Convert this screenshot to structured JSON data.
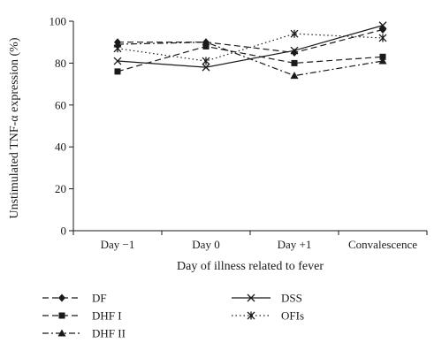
{
  "chart_data": {
    "type": "line",
    "title": "",
    "xlabel": "Day of illness related to fever",
    "ylabel": "Unstimulated TNF-α expression (%)",
    "categories": [
      "Day −1",
      "Day 0",
      "Day +1",
      "Convalescence"
    ],
    "ylim": [
      0,
      100
    ],
    "yticks": [
      0,
      20,
      40,
      60,
      80,
      100
    ],
    "grid": false,
    "legend_position": "bottom",
    "series": [
      {
        "name": "DF",
        "values": [
          90,
          90,
          85,
          96
        ],
        "marker": "diamond",
        "dash": "long-dash",
        "color": "#1a1a1a"
      },
      {
        "name": "DHF I",
        "values": [
          76,
          88,
          80,
          83
        ],
        "marker": "square",
        "dash": "long-dash",
        "color": "#1a1a1a"
      },
      {
        "name": "DHF II",
        "values": [
          89,
          90,
          74,
          81
        ],
        "marker": "triangle",
        "dash": "dash-dot",
        "color": "#1a1a1a"
      },
      {
        "name": "DSS",
        "values": [
          81,
          78,
          86,
          98
        ],
        "marker": "x",
        "dash": "solid",
        "color": "#1a1a1a"
      },
      {
        "name": "OFIs",
        "values": [
          87,
          81,
          94,
          92
        ],
        "marker": "asterisk",
        "dash": "dotted",
        "color": "#1a1a1a"
      }
    ]
  }
}
